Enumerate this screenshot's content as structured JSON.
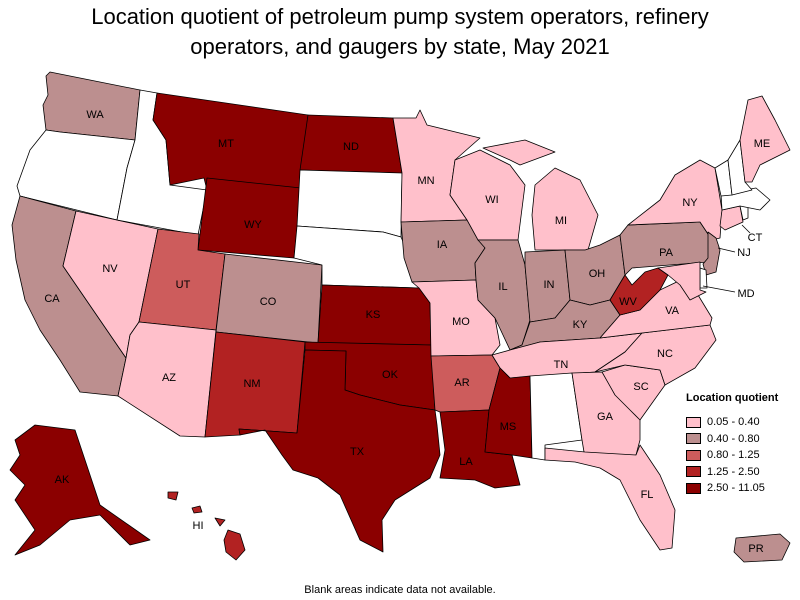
{
  "title_line1": "Location quotient of petroleum pump system operators, refinery",
  "title_line2": "operators, and gaugers by state, May 2021",
  "colors": {
    "c0": "#ffc0cb",
    "c1": "#bc8f8f",
    "c2": "#cd5c5c",
    "c3": "#b22222",
    "c4": "#8b0000",
    "none": "#ffffff"
  },
  "legend": {
    "title": "Location quotient",
    "items": [
      {
        "label": "0.05 - 0.40",
        "color": "#ffc0cb"
      },
      {
        "label": "0.40 - 0.80",
        "color": "#bc8f8f"
      },
      {
        "label": "0.80 - 1.25",
        "color": "#cd5c5c"
      },
      {
        "label": "1.25 - 2.50",
        "color": "#b22222"
      },
      {
        "label": "2.50 - 11.05",
        "color": "#8b0000"
      }
    ]
  },
  "states": {
    "WA": {
      "label": "WA",
      "bin": "c1"
    },
    "OR": {
      "label": "",
      "bin": "none"
    },
    "CA": {
      "label": "CA",
      "bin": "c1"
    },
    "NV": {
      "label": "NV",
      "bin": "c0"
    },
    "ID": {
      "label": "",
      "bin": "none"
    },
    "MT": {
      "label": "MT",
      "bin": "c4"
    },
    "WY": {
      "label": "WY",
      "bin": "c4"
    },
    "UT": {
      "label": "UT",
      "bin": "c2"
    },
    "AZ": {
      "label": "AZ",
      "bin": "c0"
    },
    "CO": {
      "label": "CO",
      "bin": "c1"
    },
    "NM": {
      "label": "NM",
      "bin": "c3"
    },
    "ND": {
      "label": "ND",
      "bin": "c4"
    },
    "SD": {
      "label": "",
      "bin": "none"
    },
    "NE": {
      "label": "",
      "bin": "none"
    },
    "KS": {
      "label": "KS",
      "bin": "c4"
    },
    "OK": {
      "label": "OK",
      "bin": "c4"
    },
    "TX": {
      "label": "TX",
      "bin": "c4"
    },
    "MN": {
      "label": "MN",
      "bin": "c0"
    },
    "IA": {
      "label": "IA",
      "bin": "c1"
    },
    "MO": {
      "label": "MO",
      "bin": "c0"
    },
    "AR": {
      "label": "AR",
      "bin": "c2"
    },
    "LA": {
      "label": "LA",
      "bin": "c4"
    },
    "WI": {
      "label": "WI",
      "bin": "c0"
    },
    "IL": {
      "label": "IL",
      "bin": "c1"
    },
    "MI": {
      "label": "MI",
      "bin": "c0"
    },
    "IN": {
      "label": "IN",
      "bin": "c1"
    },
    "OH": {
      "label": "OH",
      "bin": "c1"
    },
    "KY": {
      "label": "KY",
      "bin": "c1"
    },
    "TN": {
      "label": "TN",
      "bin": "c0"
    },
    "MS": {
      "label": "MS",
      "bin": "c4"
    },
    "AL": {
      "label": "",
      "bin": "none"
    },
    "GA": {
      "label": "GA",
      "bin": "c0"
    },
    "FL": {
      "label": "FL",
      "bin": "c0"
    },
    "SC": {
      "label": "SC",
      "bin": "c0"
    },
    "NC": {
      "label": "NC",
      "bin": "c0"
    },
    "VA": {
      "label": "VA",
      "bin": "c0"
    },
    "WV": {
      "label": "WV",
      "bin": "c3"
    },
    "PA": {
      "label": "PA",
      "bin": "c1"
    },
    "NY": {
      "label": "NY",
      "bin": "c0"
    },
    "NJ": {
      "label": "NJ",
      "bin": "c1"
    },
    "MD": {
      "label": "MD",
      "bin": "c0"
    },
    "DE": {
      "label": "",
      "bin": "none"
    },
    "CT": {
      "label": "CT",
      "bin": "c0"
    },
    "RI": {
      "label": "",
      "bin": "none"
    },
    "MA": {
      "label": "",
      "bin": "none"
    },
    "VT": {
      "label": "",
      "bin": "none"
    },
    "NH": {
      "label": "",
      "bin": "none"
    },
    "ME": {
      "label": "ME",
      "bin": "c0"
    },
    "AK": {
      "label": "AK",
      "bin": "c4"
    },
    "HI": {
      "label": "HI",
      "bin": "c3"
    },
    "PR": {
      "label": "PR",
      "bin": "c1"
    }
  },
  "note": "Blank areas indicate data not available."
}
